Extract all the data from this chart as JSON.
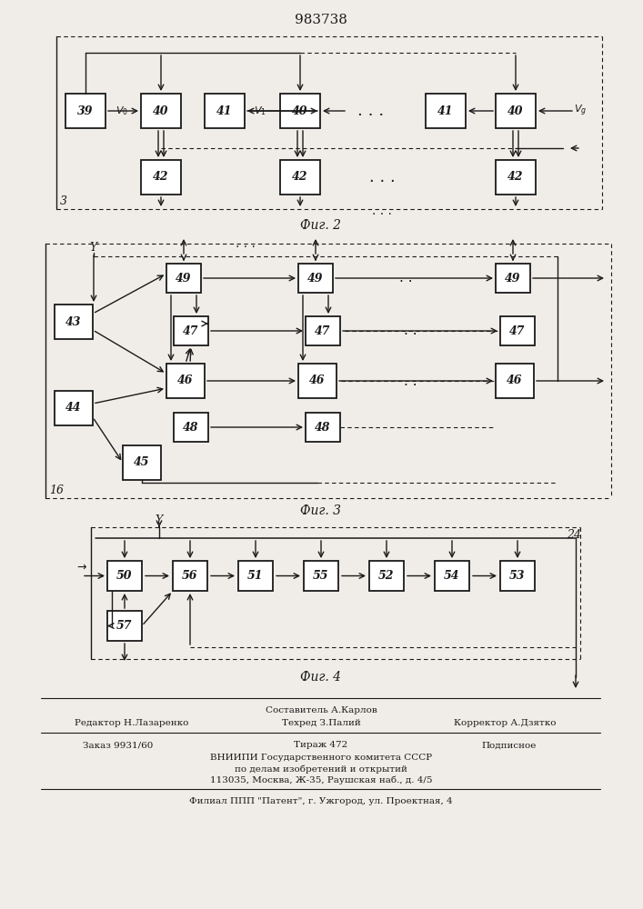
{
  "title": "983738",
  "fig2_label": "Фиг. 2",
  "fig3_label": "Фиг. 3",
  "fig4_label": "Фиг. 4",
  "fig2_corner_label": "3",
  "fig3_corner_label": "16",
  "fig4_corner_label": "24",
  "bg_color": "#f0ede8",
  "box_color": "#ffffff",
  "line_color": "#1a1a1a"
}
